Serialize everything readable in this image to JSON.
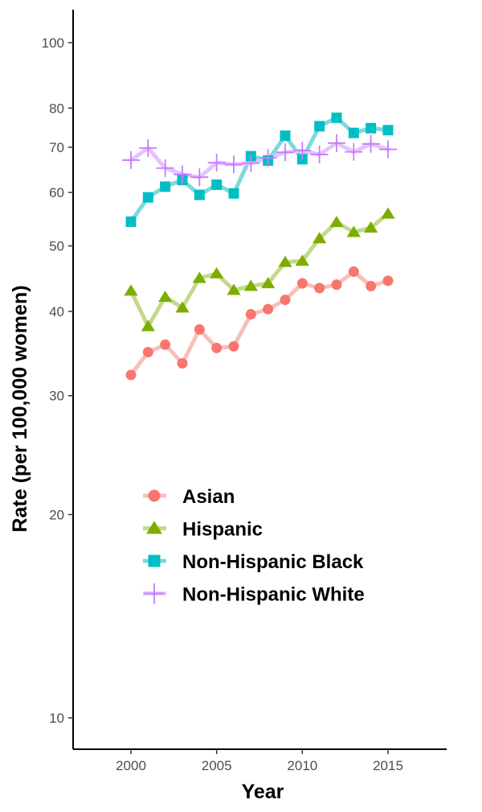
{
  "chart_data": {
    "type": "line",
    "title": "",
    "xlabel": "Year",
    "ylabel": "Rate (per 100,000 women)",
    "xlim": [
      1996.5,
      2018.5
    ],
    "ylim": [
      8.8,
      108
    ],
    "yscale": "log",
    "x_ticks": [
      2000,
      2005,
      2010,
      2015
    ],
    "y_ticks": [
      10,
      20,
      30,
      40,
      50,
      60,
      70,
      80,
      100
    ],
    "grid": false,
    "legend_position": "bottom-left inside",
    "x": [
      2000,
      2001,
      2002,
      2003,
      2004,
      2005,
      2006,
      2007,
      2008,
      2009,
      2010,
      2011,
      2012,
      2013,
      2014,
      2015
    ],
    "series": [
      {
        "name": "Asian",
        "marker": "circle",
        "color": "#f8766d",
        "line_color": "#f8bfbb",
        "values": [
          32.2,
          34.8,
          35.7,
          33.5,
          37.6,
          35.3,
          35.5,
          39.6,
          40.3,
          41.6,
          44.0,
          43.3,
          43.8,
          45.8,
          43.6,
          44.4
        ]
      },
      {
        "name": "Hispanic",
        "marker": "triangle",
        "color": "#7cae00",
        "line_color": "#c3d98c",
        "values": [
          42.9,
          38.0,
          42.0,
          40.5,
          44.8,
          45.5,
          43.0,
          43.6,
          44.0,
          47.3,
          47.5,
          51.3,
          54.2,
          52.4,
          53.2,
          55.8
        ]
      },
      {
        "name": "Non-Hispanic Black",
        "marker": "square",
        "color": "#00bfc4",
        "line_color": "#7ed9dc",
        "values": [
          54.3,
          59.0,
          61.2,
          62.6,
          59.5,
          61.6,
          59.8,
          67.9,
          66.9,
          72.8,
          67.2,
          75.2,
          77.4,
          73.5,
          74.7,
          74.2
        ]
      },
      {
        "name": "Non-Hispanic White",
        "marker": "cross",
        "color": "#c77cff",
        "line_color": "#e3c4ff",
        "values": [
          67.0,
          69.8,
          65.2,
          63.8,
          63.2,
          66.4,
          66.0,
          66.3,
          67.5,
          68.8,
          69.2,
          68.3,
          71.0,
          68.9,
          70.8,
          69.5
        ]
      }
    ]
  }
}
